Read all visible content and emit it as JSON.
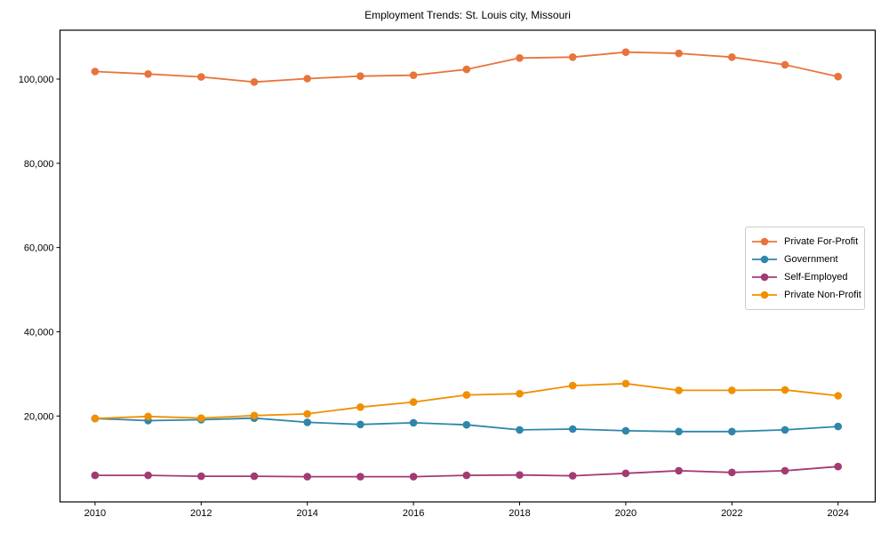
{
  "chart_data": {
    "type": "line",
    "title": "Employment Trends: St. Louis city, Missouri",
    "xlabel": "",
    "ylabel": "",
    "grid": false,
    "legend_position": "center right",
    "x": [
      2010,
      2011,
      2012,
      2013,
      2014,
      2015,
      2016,
      2017,
      2018,
      2019,
      2020,
      2021,
      2022,
      2023,
      2024
    ],
    "x_ticks": [
      2010,
      2012,
      2014,
      2016,
      2018,
      2020,
      2022,
      2024
    ],
    "y_ticks": [
      20000,
      40000,
      60000,
      80000,
      100000
    ],
    "y_tick_labels": [
      "20,000",
      "40,000",
      "60,000",
      "80,000",
      "100,000"
    ],
    "xlim": [
      2009.34,
      2024.7
    ],
    "ylim": [
      -400,
      111600
    ],
    "series": [
      {
        "name": "Private For-Profit",
        "color": "#e8743b",
        "values": [
          101800,
          101200,
          100500,
          99300,
          100100,
          100700,
          100900,
          102300,
          105000,
          105200,
          106400,
          106100,
          105200,
          103400,
          100600
        ]
      },
      {
        "name": "Government",
        "color": "#2e86ab",
        "values": [
          19400,
          18900,
          19100,
          19500,
          18500,
          18000,
          18400,
          17900,
          16700,
          16900,
          16500,
          16300,
          16300,
          16700,
          17500
        ]
      },
      {
        "name": "Self-Employed",
        "color": "#a23b72",
        "values": [
          5900,
          5900,
          5700,
          5700,
          5600,
          5600,
          5600,
          5900,
          6000,
          5800,
          6400,
          7000,
          6600,
          7000,
          8000
        ]
      },
      {
        "name": "Private Non-Profit",
        "color": "#f18f01",
        "values": [
          19400,
          19900,
          19500,
          20100,
          20500,
          22100,
          23300,
          25000,
          25300,
          27200,
          27700,
          26100,
          26100,
          26200,
          24800
        ]
      }
    ]
  }
}
